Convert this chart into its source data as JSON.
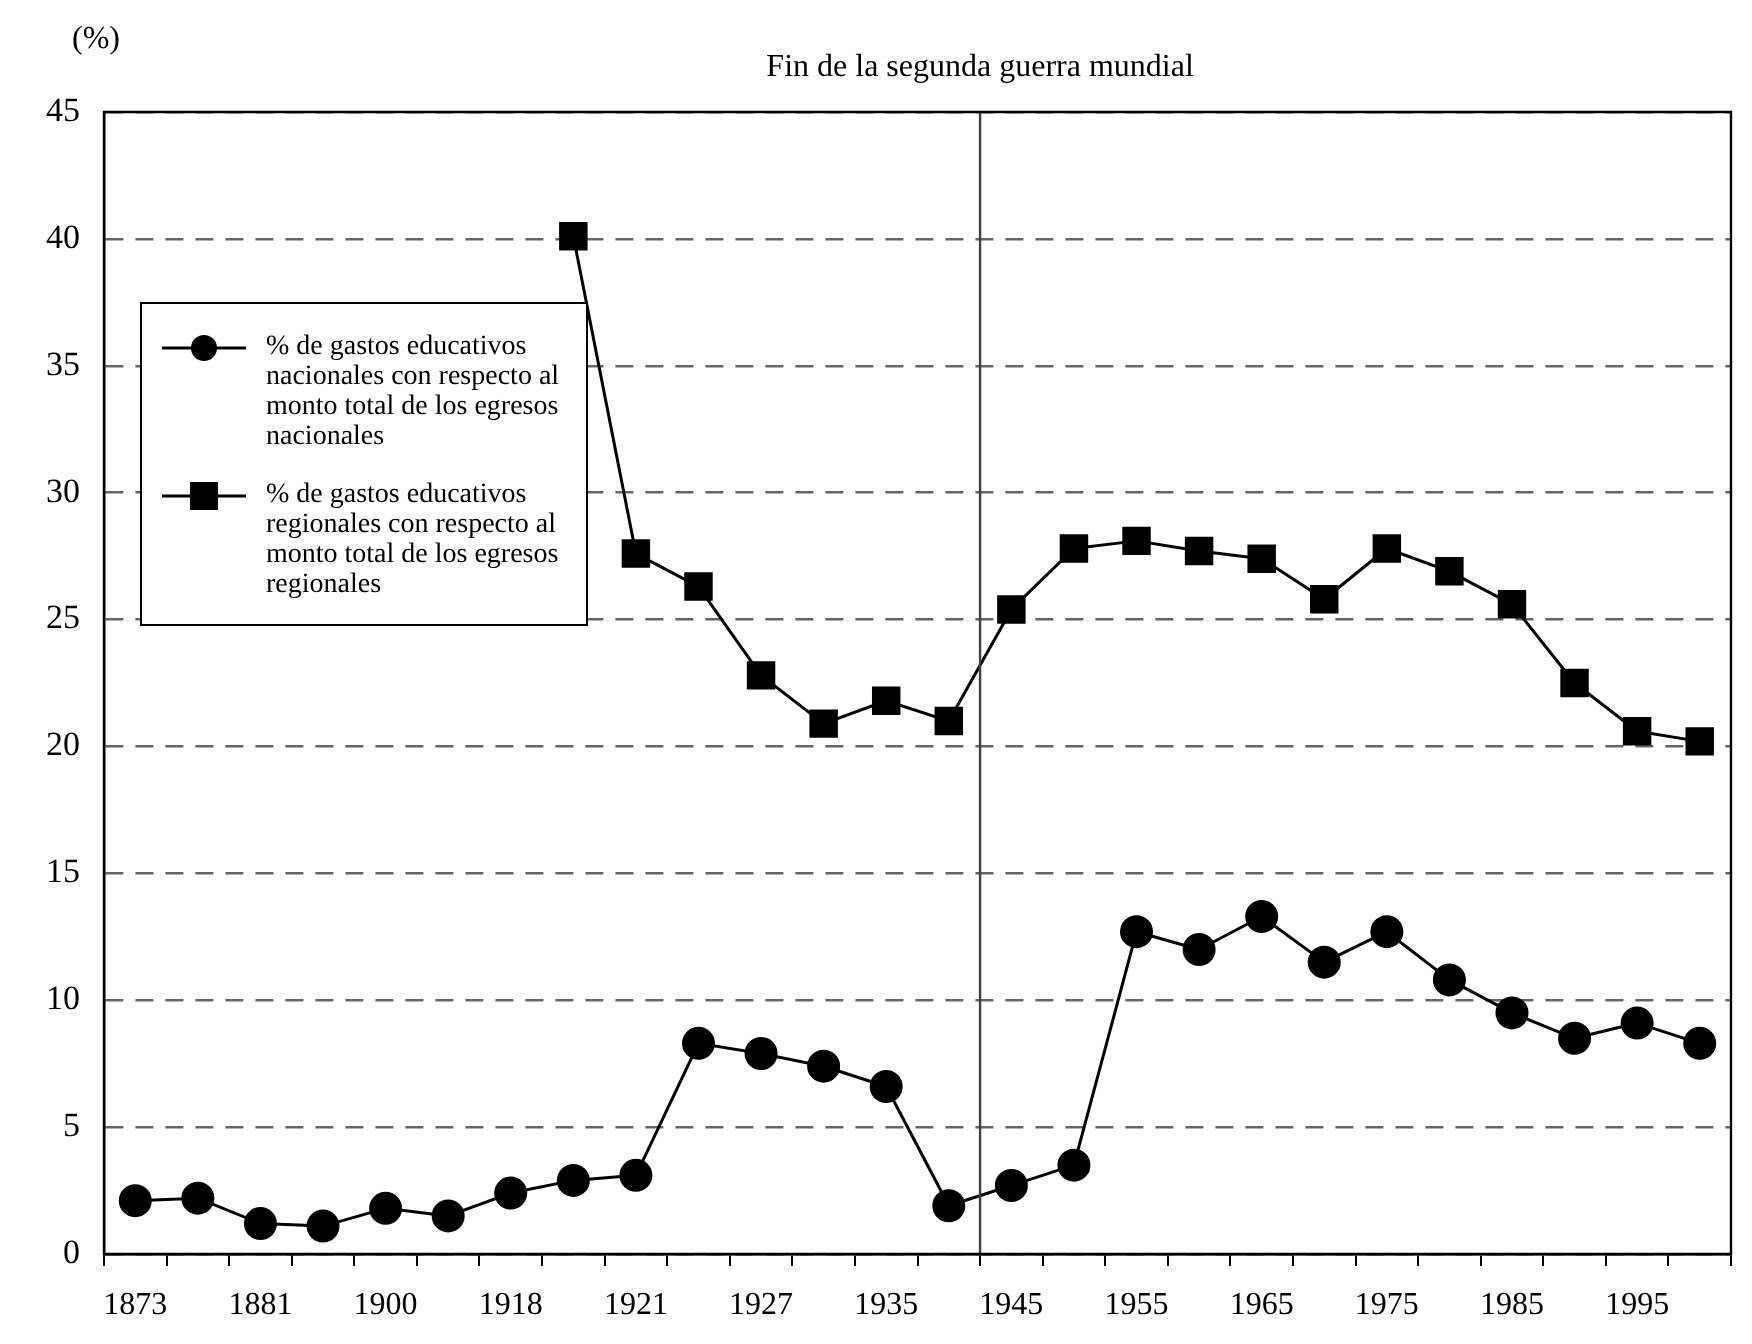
{
  "chart_data": {
    "type": "line",
    "ylabel": "(%)",
    "categories": [
      "1873",
      null,
      "1881",
      null,
      "1900",
      null,
      "1918",
      null,
      "1921",
      null,
      "1927",
      null,
      "1935",
      null,
      "1945",
      null,
      "1955",
      null,
      "1965",
      null,
      "1975",
      null,
      "1985",
      null,
      "1995",
      null
    ],
    "ylim": [
      0,
      45
    ],
    "yticks": [
      0,
      5,
      10,
      15,
      20,
      25,
      30,
      35,
      40,
      45
    ],
    "grid": "y",
    "legend": "top left",
    "line_style": "solid",
    "ref_lines": [
      {
        "axis": "x",
        "value": "1945",
        "label": "Fin de la segunda guerra mundial",
        "color": "#404040",
        "line_style": "solid"
      }
    ],
    "series": [
      {
        "name": "% de gastos educativos nacionales con respecto al monto total de los egresos nacionales",
        "color": "#000000",
        "marker": "circle",
        "values": [
          2.1,
          2.2,
          1.2,
          1.1,
          1.8,
          1.5,
          2.4,
          2.9,
          3.1,
          8.3,
          7.9,
          7.4,
          6.6,
          1.9,
          2.7,
          3.5,
          12.7,
          12.0,
          13.3,
          11.5,
          12.7,
          10.8,
          9.5,
          8.5,
          9.1,
          8.3
        ]
      },
      {
        "name": "% de gastos educativos regionales con respecto al monto total de los egresos regionales",
        "color": "#000000",
        "marker": "square",
        "values": [
          null,
          null,
          null,
          null,
          null,
          null,
          null,
          40.1,
          27.6,
          26.3,
          22.8,
          20.9,
          21.8,
          21.0,
          25.4,
          27.8,
          28.1,
          27.7,
          27.4,
          25.8,
          27.8,
          26.9,
          25.6,
          22.5,
          20.6,
          20.2
        ]
      }
    ]
  }
}
